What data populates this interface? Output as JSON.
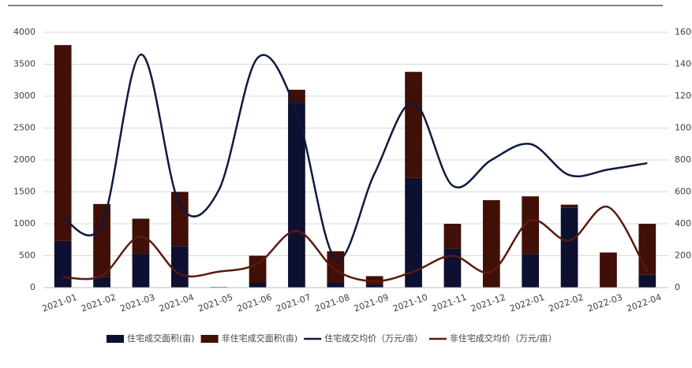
{
  "chart_data": {
    "type": "bar-line",
    "categories": [
      "2021-01",
      "2021-02",
      "2021-03",
      "2021-04",
      "2021-05",
      "2021-06",
      "2021-07",
      "2021-08",
      "2021-09",
      "2021-10",
      "2021-11",
      "2021-12",
      "2022-01",
      "2022-02",
      "2022-03",
      "2022-04"
    ],
    "series": [
      {
        "name": "住宅成交面积(亩)",
        "kind": "bar",
        "color": "#0d1030",
        "values": [
          730,
          170,
          530,
          650,
          10,
          80,
          2900,
          80,
          50,
          1720,
          610,
          0,
          520,
          1250,
          0,
          200
        ]
      },
      {
        "name": "非住宅成交面积(亩)",
        "kind": "bar",
        "color": "#3f0f08",
        "values": [
          3070,
          1140,
          550,
          850,
          0,
          420,
          200,
          490,
          130,
          1660,
          390,
          1370,
          910,
          50,
          550,
          800
        ]
      },
      {
        "name": "住宅成交均价（万元/亩）",
        "kind": "line",
        "axis": "y2",
        "color": "#0d1a40",
        "values": [
          435,
          395,
          1460,
          520,
          610,
          1440,
          1100,
          180,
          715,
          1160,
          640,
          800,
          900,
          705,
          740,
          780
        ]
      },
      {
        "name": "非住宅成交均价（万元/亩）",
        "kind": "line",
        "axis": "y2",
        "color": "#5a1a10",
        "values": [
          65,
          75,
          320,
          85,
          100,
          150,
          355,
          110,
          40,
          100,
          200,
          100,
          420,
          295,
          505,
          100
        ]
      }
    ],
    "ylim": [
      0,
      4000
    ],
    "yticks": [
      0,
      500,
      1000,
      1500,
      2000,
      2500,
      3000,
      3500,
      4000
    ],
    "y2lim": [
      0,
      1600
    ],
    "y2ticks": [
      0,
      200,
      400,
      600,
      800,
      1000,
      1200,
      1400,
      1600
    ],
    "grid": true,
    "legend": "bottom"
  }
}
